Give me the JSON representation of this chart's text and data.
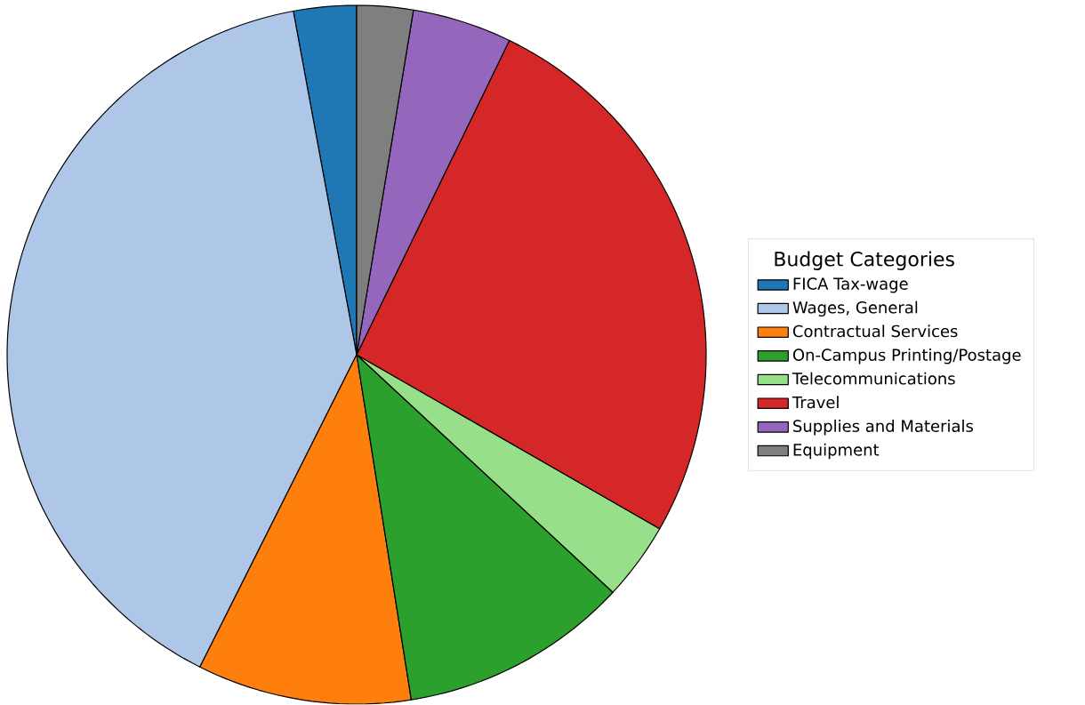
{
  "chart_data": {
    "type": "pie",
    "legend_title": "Budget Categories",
    "legend": "right",
    "categories": [
      "FICA Tax-wage",
      "Wages, General",
      "Contractual Services",
      "On-Campus Printing/Postage",
      "Telecommunications",
      "Travel",
      "Supplies and Materials",
      "Equipment"
    ],
    "values": [
      2.9,
      39.7,
      9.9,
      10.6,
      3.6,
      26.1,
      4.6,
      2.6
    ],
    "colors": [
      "#1f77b4",
      "#aec7e8",
      "#ff7f0e",
      "#2ca02c",
      "#98df8a",
      "#d62728",
      "#9467bd",
      "#7f7f7f"
    ]
  }
}
